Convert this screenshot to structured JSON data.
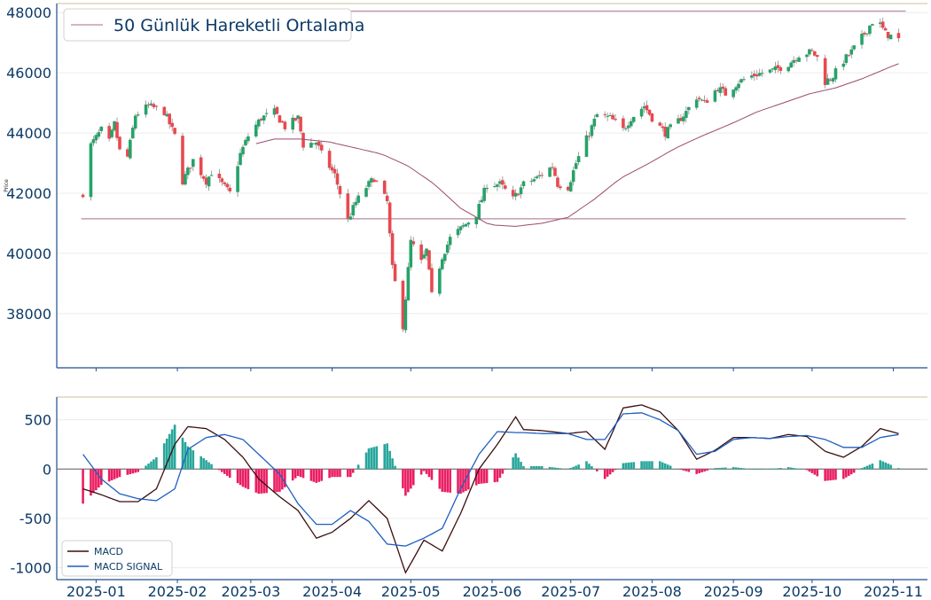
{
  "chart_data": [
    {
      "type": "candlestick",
      "ylabel": "Price",
      "ylim": [
        36200,
        48300
      ],
      "yticks": [
        38000,
        40000,
        42000,
        44000,
        46000,
        48000
      ],
      "legend": {
        "label": "50 Günlük Hareketli Ortalama",
        "placement": "top-left"
      },
      "grid": "horizontal",
      "up_color": "#26a269",
      "down_color": "#e8494f",
      "ma_color": "#9c4a6b",
      "ref_lines": [
        48050,
        41150
      ],
      "price_keypoints": [
        [
          "2024-12-27",
          42000
        ],
        [
          "2024-12-30",
          43600
        ],
        [
          "2025-01-03",
          44100
        ],
        [
          "2025-01-06",
          43700
        ],
        [
          "2025-01-08",
          44300
        ],
        [
          "2025-01-10",
          43400
        ],
        [
          "2025-01-13",
          43200
        ],
        [
          "2025-01-16",
          44600
        ],
        [
          "2025-01-21",
          44900
        ],
        [
          "2025-01-27",
          44700
        ],
        [
          "2025-01-31",
          43900
        ],
        [
          "2025-02-03",
          42400
        ],
        [
          "2025-02-07",
          43100
        ],
        [
          "2025-02-12",
          42400
        ],
        [
          "2025-02-14",
          42700
        ],
        [
          "2025-02-19",
          42200
        ],
        [
          "2025-02-21",
          42000
        ],
        [
          "2025-02-25",
          43300
        ],
        [
          "2025-02-28",
          43900
        ],
        [
          "2025-03-05",
          44500
        ],
        [
          "2025-03-10",
          44700
        ],
        [
          "2025-03-14",
          44200
        ],
        [
          "2025-03-19",
          44500
        ],
        [
          "2025-03-21",
          43600
        ],
        [
          "2025-03-26",
          43700
        ],
        [
          "2025-03-28",
          43300
        ],
        [
          "2025-04-02",
          42600
        ],
        [
          "2025-04-07",
          41100
        ],
        [
          "2025-04-10",
          41700
        ],
        [
          "2025-04-14",
          42200
        ],
        [
          "2025-04-17",
          42500
        ],
        [
          "2025-04-22",
          41700
        ],
        [
          "2025-04-24",
          39500
        ],
        [
          "2025-04-28",
          37600
        ],
        [
          "2025-05-01",
          40400
        ],
        [
          "2025-05-05",
          39700
        ],
        [
          "2025-05-07",
          40100
        ],
        [
          "2025-05-09",
          38600
        ],
        [
          "2025-05-13",
          39900
        ],
        [
          "2025-05-16",
          40500
        ],
        [
          "2025-05-21",
          40900
        ],
        [
          "2025-05-26",
          41300
        ],
        [
          "2025-05-30",
          42300
        ],
        [
          "2025-06-04",
          42300
        ],
        [
          "2025-06-09",
          41800
        ],
        [
          "2025-06-13",
          42300
        ],
        [
          "2025-06-18",
          42500
        ],
        [
          "2025-06-24",
          42900
        ],
        [
          "2025-06-26",
          42300
        ],
        [
          "2025-06-30",
          42200
        ],
        [
          "2025-07-03",
          43000
        ],
        [
          "2025-07-08",
          44000
        ],
        [
          "2025-07-11",
          44600
        ],
        [
          "2025-07-16",
          44500
        ],
        [
          "2025-07-21",
          44100
        ],
        [
          "2025-07-24",
          44500
        ],
        [
          "2025-07-29",
          44900
        ],
        [
          "2025-08-01",
          44500
        ],
        [
          "2025-08-06",
          44000
        ],
        [
          "2025-08-11",
          44400
        ],
        [
          "2025-08-14",
          44700
        ],
        [
          "2025-08-18",
          45200
        ],
        [
          "2025-08-21",
          45000
        ],
        [
          "2025-08-26",
          45500
        ],
        [
          "2025-08-29",
          45300
        ],
        [
          "2025-09-03",
          45700
        ],
        [
          "2025-09-08",
          45900
        ],
        [
          "2025-09-12",
          46000
        ],
        [
          "2025-09-17",
          46100
        ],
        [
          "2025-09-22",
          46300
        ],
        [
          "2025-09-26",
          46600
        ],
        [
          "2025-10-01",
          46700
        ],
        [
          "2025-10-03",
          46500
        ],
        [
          "2025-10-06",
          45700
        ],
        [
          "2025-10-09",
          45900
        ],
        [
          "2025-10-13",
          46400
        ],
        [
          "2025-10-16",
          46700
        ],
        [
          "2025-10-21",
          47300
        ],
        [
          "2025-10-24",
          47700
        ],
        [
          "2025-10-27",
          47600
        ],
        [
          "2025-10-29",
          47300
        ],
        [
          "2025-11-03",
          47100
        ]
      ],
      "ma50_keypoints": [
        [
          "2025-03-01",
          43600
        ],
        [
          "2025-03-10",
          43800
        ],
        [
          "2025-03-20",
          43800
        ],
        [
          "2025-03-31",
          43700
        ],
        [
          "2025-04-10",
          43500
        ],
        [
          "2025-04-20",
          43300
        ],
        [
          "2025-04-30",
          42900
        ],
        [
          "2025-05-10",
          42300
        ],
        [
          "2025-05-20",
          41500
        ],
        [
          "2025-05-31",
          40950
        ],
        [
          "2025-06-10",
          40900
        ],
        [
          "2025-06-20",
          41000
        ],
        [
          "2025-06-30",
          41200
        ],
        [
          "2025-07-10",
          41800
        ],
        [
          "2025-07-20",
          42500
        ],
        [
          "2025-07-31",
          43000
        ],
        [
          "2025-08-10",
          43500
        ],
        [
          "2025-08-20",
          43900
        ],
        [
          "2025-08-31",
          44300
        ],
        [
          "2025-09-10",
          44700
        ],
        [
          "2025-09-20",
          45000
        ],
        [
          "2025-09-30",
          45300
        ],
        [
          "2025-10-10",
          45500
        ],
        [
          "2025-10-20",
          45800
        ],
        [
          "2025-10-31",
          46200
        ],
        [
          "2025-11-03",
          46300
        ]
      ]
    },
    {
      "type": "macd",
      "ylim": [
        -1120,
        730
      ],
      "yticks": [
        -1000,
        -500,
        0,
        500
      ],
      "legend": {
        "placement": "bottom-left"
      },
      "series": [
        {
          "name": "MACD",
          "color": "#3a0f0f",
          "keypoints": [
            [
              "2024-12-27",
              -200
            ],
            [
              "2025-01-03",
              -260
            ],
            [
              "2025-01-10",
              -330
            ],
            [
              "2025-01-17",
              -330
            ],
            [
              "2025-01-24",
              -200
            ],
            [
              "2025-01-31",
              250
            ],
            [
              "2025-02-05",
              430
            ],
            [
              "2025-02-12",
              410
            ],
            [
              "2025-02-19",
              300
            ],
            [
              "2025-02-26",
              120
            ],
            [
              "2025-03-04",
              -100
            ],
            [
              "2025-03-12",
              -280
            ],
            [
              "2025-03-19",
              -420
            ],
            [
              "2025-03-26",
              -700
            ],
            [
              "2025-04-01",
              -640
            ],
            [
              "2025-04-08",
              -500
            ],
            [
              "2025-04-15",
              -320
            ],
            [
              "2025-04-22",
              -500
            ],
            [
              "2025-04-29",
              -1050
            ],
            [
              "2025-05-06",
              -720
            ],
            [
              "2025-05-13",
              -830
            ],
            [
              "2025-05-20",
              -450
            ],
            [
              "2025-05-27",
              0
            ],
            [
              "2025-06-03",
              250
            ],
            [
              "2025-06-10",
              530
            ],
            [
              "2025-06-13",
              400
            ],
            [
              "2025-06-20",
              390
            ],
            [
              "2025-06-30",
              360
            ],
            [
              "2025-07-07",
              380
            ],
            [
              "2025-07-14",
              200
            ],
            [
              "2025-07-21",
              620
            ],
            [
              "2025-07-28",
              650
            ],
            [
              "2025-08-04",
              580
            ],
            [
              "2025-08-11",
              390
            ],
            [
              "2025-08-18",
              100
            ],
            [
              "2025-08-25",
              190
            ],
            [
              "2025-09-01",
              320
            ],
            [
              "2025-09-08",
              320
            ],
            [
              "2025-09-15",
              310
            ],
            [
              "2025-09-22",
              350
            ],
            [
              "2025-09-29",
              330
            ],
            [
              "2025-10-06",
              180
            ],
            [
              "2025-10-13",
              120
            ],
            [
              "2025-10-20",
              230
            ],
            [
              "2025-10-27",
              410
            ],
            [
              "2025-11-03",
              360
            ]
          ]
        },
        {
          "name": "MACD SIGNAL",
          "color": "#1f5fbf",
          "keypoints": [
            [
              "2024-12-27",
              150
            ],
            [
              "2025-01-03",
              -100
            ],
            [
              "2025-01-10",
              -250
            ],
            [
              "2025-01-17",
              -300
            ],
            [
              "2025-01-24",
              -320
            ],
            [
              "2025-01-31",
              -200
            ],
            [
              "2025-02-05",
              200
            ],
            [
              "2025-02-12",
              320
            ],
            [
              "2025-02-19",
              350
            ],
            [
              "2025-02-26",
              300
            ],
            [
              "2025-03-04",
              150
            ],
            [
              "2025-03-12",
              -50
            ],
            [
              "2025-03-19",
              -350
            ],
            [
              "2025-03-26",
              -560
            ],
            [
              "2025-04-01",
              -560
            ],
            [
              "2025-04-08",
              -420
            ],
            [
              "2025-04-15",
              -530
            ],
            [
              "2025-04-22",
              -760
            ],
            [
              "2025-04-29",
              -780
            ],
            [
              "2025-05-06",
              -700
            ],
            [
              "2025-05-13",
              -600
            ],
            [
              "2025-05-20",
              -200
            ],
            [
              "2025-05-27",
              150
            ],
            [
              "2025-06-03",
              380
            ],
            [
              "2025-06-10",
              370
            ],
            [
              "2025-06-13",
              370
            ],
            [
              "2025-06-20",
              360
            ],
            [
              "2025-06-30",
              360
            ],
            [
              "2025-07-07",
              300
            ],
            [
              "2025-07-14",
              300
            ],
            [
              "2025-07-21",
              560
            ],
            [
              "2025-07-28",
              570
            ],
            [
              "2025-08-04",
              500
            ],
            [
              "2025-08-11",
              390
            ],
            [
              "2025-08-18",
              150
            ],
            [
              "2025-08-25",
              180
            ],
            [
              "2025-09-01",
              300
            ],
            [
              "2025-09-08",
              320
            ],
            [
              "2025-09-15",
              310
            ],
            [
              "2025-09-22",
              330
            ],
            [
              "2025-09-29",
              340
            ],
            [
              "2025-10-06",
              300
            ],
            [
              "2025-10-13",
              220
            ],
            [
              "2025-10-20",
              220
            ],
            [
              "2025-10-27",
              320
            ],
            [
              "2025-11-03",
              350
            ]
          ]
        }
      ],
      "histogram_colors": {
        "positive": "#26a69a",
        "negative": "#e91e63"
      }
    }
  ],
  "xticks": [
    "2025-01",
    "2025-02",
    "2025-03",
    "2025-04",
    "2025-05",
    "2025-06",
    "2025-07",
    "2025-08",
    "2025-09",
    "2025-10",
    "2025-11"
  ],
  "xdomain": [
    "2024-12-17",
    "2025-11-14"
  ]
}
